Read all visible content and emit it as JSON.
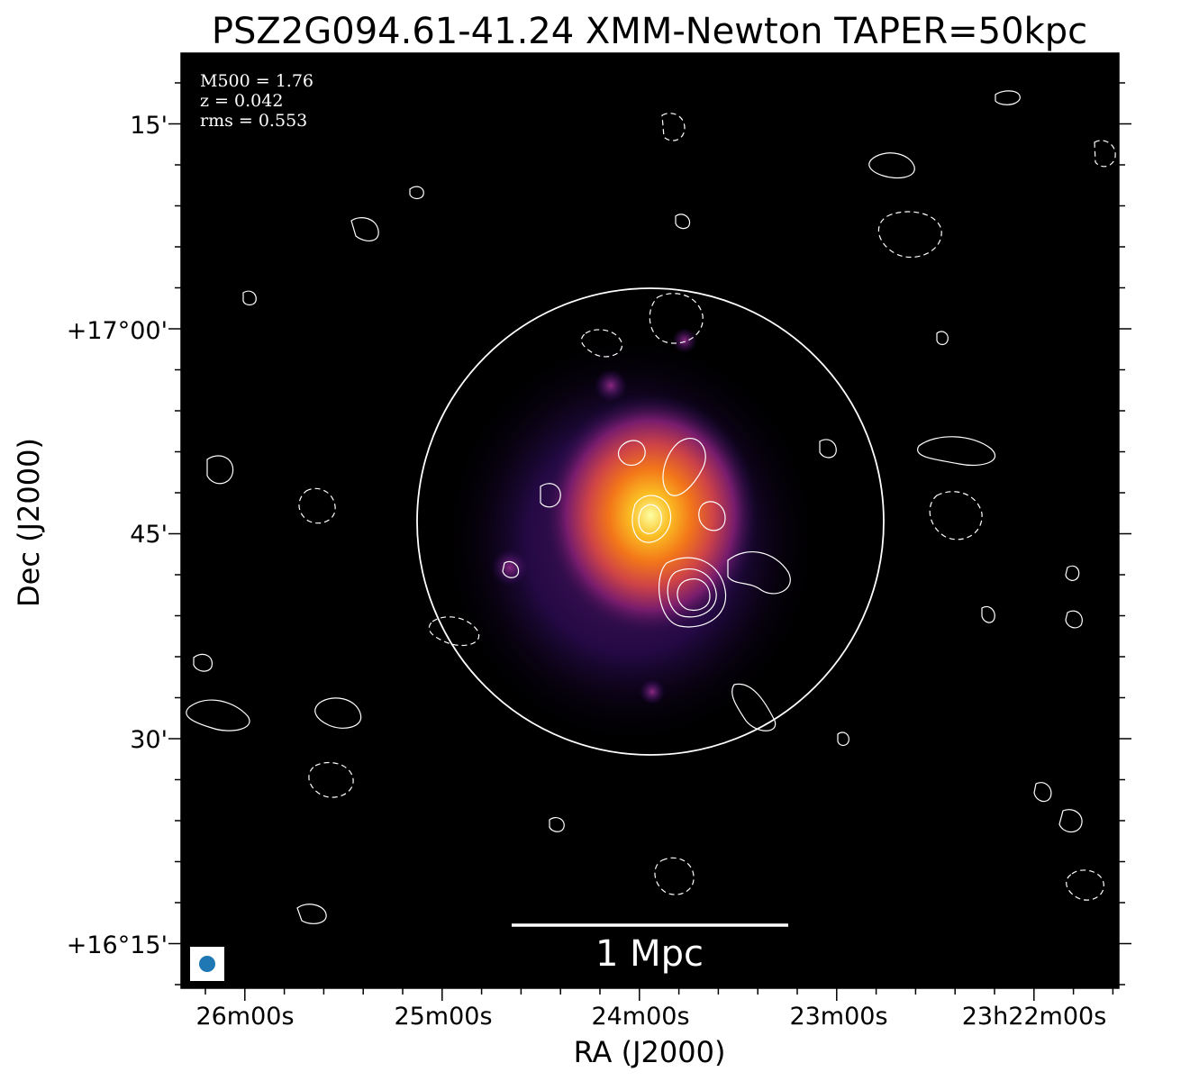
{
  "title": "PSZ2G094.61-41.24 XMM-Newton TAPER=50kpc",
  "axes": {
    "xlabel": "RA (J2000)",
    "ylabel": "Dec (J2000)",
    "x_ticks": [
      "26m00s",
      "25m00s",
      "24m00s",
      "23m00s",
      "23h22m00s"
    ],
    "y_ticks": [
      "15'",
      "+17°00'",
      "45'",
      "30'",
      "+16°15'"
    ]
  },
  "annotations": {
    "lines": [
      "M500 = 1.76",
      "z = 0.042",
      "rms = 0.553"
    ]
  },
  "scalebar": {
    "label": "1 Mpc"
  },
  "colors": {
    "background": "#000000",
    "contour": "#ffffff",
    "beam": "#1f77b4",
    "colormap": "inferno"
  }
}
